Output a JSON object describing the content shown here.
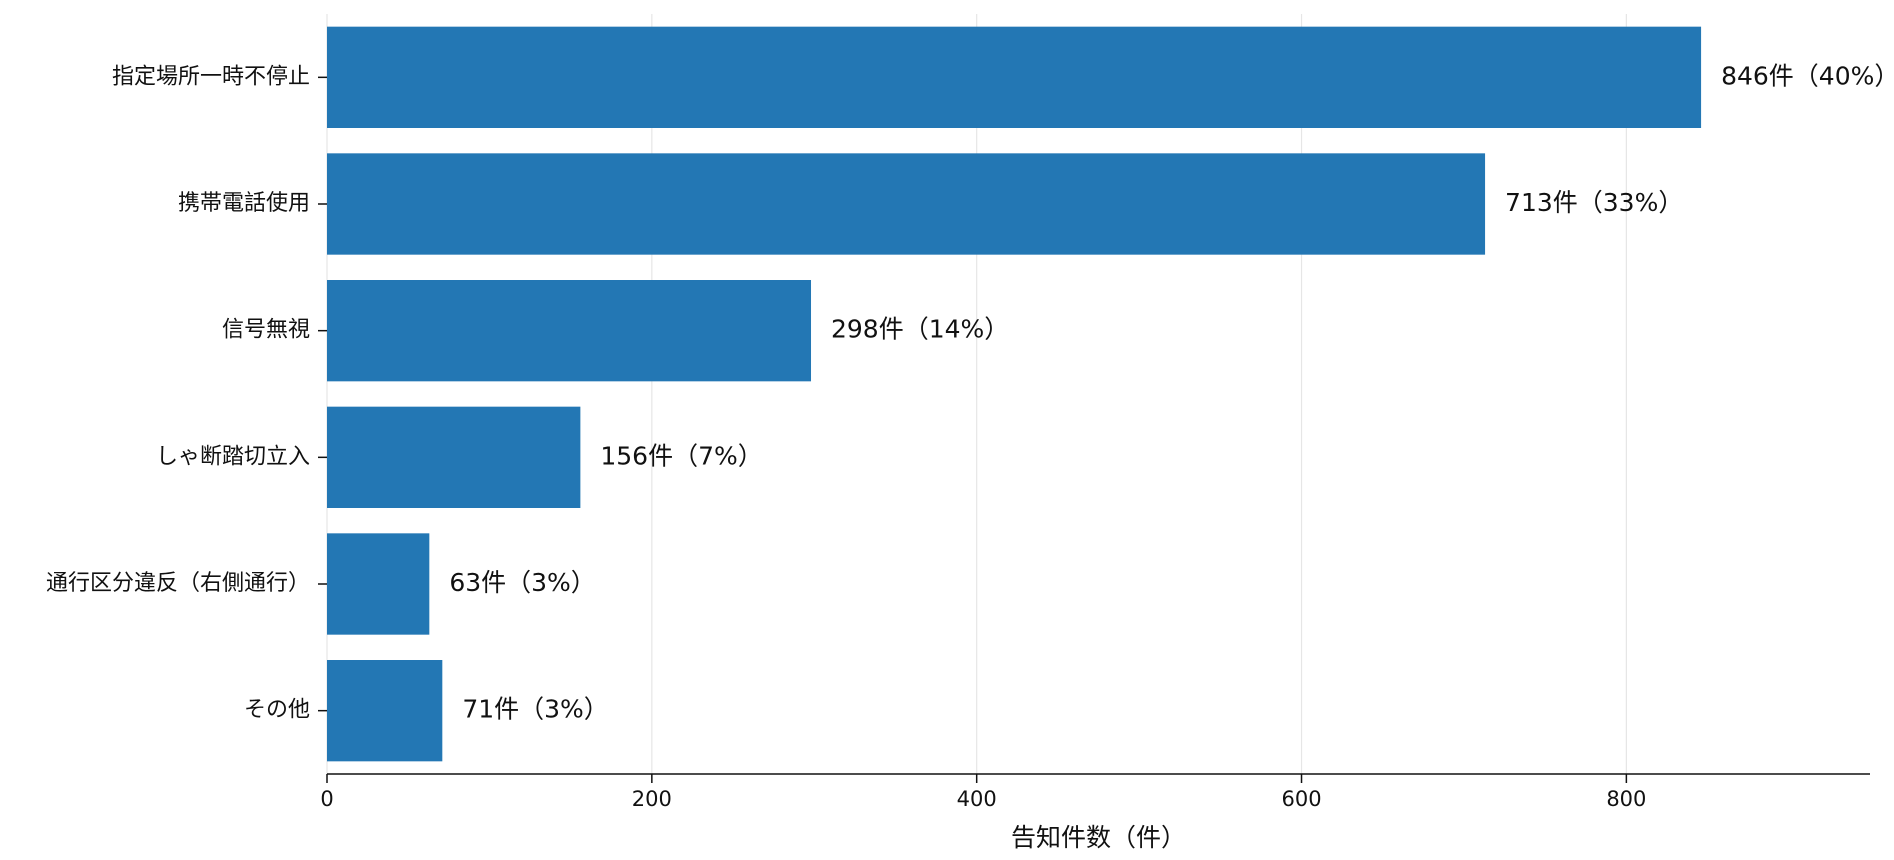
{
  "chart_data": {
    "type": "bar",
    "orientation": "horizontal",
    "categories": [
      "指定場所一時不停止",
      "携帯電話使用",
      "信号無視",
      "しゃ断踏切立入",
      "通行区分違反（右側通行）",
      "その他"
    ],
    "values": [
      846,
      713,
      298,
      156,
      63,
      71
    ],
    "data_labels": [
      "846件（40%）",
      "713件（33%）",
      "298件（14%）",
      "156件（7%）",
      "63件（3%）",
      "71件（3%）"
    ],
    "xlabel": "告知件数（件）",
    "ylabel": "",
    "xlim": [
      0,
      950
    ],
    "x_ticks": [
      0,
      200,
      400,
      600,
      800
    ],
    "x_tick_labels": [
      "0",
      "200",
      "400",
      "600",
      "800"
    ],
    "grid": "vertical",
    "bar_color": "#2377b4",
    "grid_color": "#e6e6e6",
    "axis_color": "#111111"
  }
}
